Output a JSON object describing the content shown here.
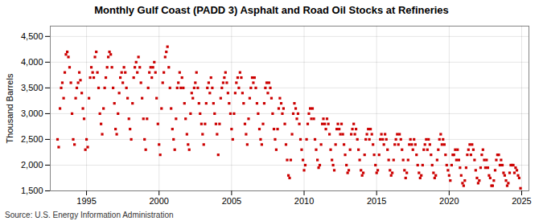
{
  "chart_data": {
    "type": "scatter",
    "title": "Monthly Gulf Coast (PADD 3) Asphalt and Road Oil Stocks at Refineries",
    "y_label": "Thousand Barrels",
    "annotations": [
      "Source: U.S. Energy Information Administration"
    ],
    "color": "#cc0000",
    "marker": "square",
    "grid": true,
    "xlim": [
      1992.5,
      2025.5
    ],
    "ylim": [
      1500,
      4700
    ],
    "xticks": [
      1995,
      2000,
      2005,
      2010,
      2015,
      2020,
      2025
    ],
    "yticks": [
      {
        "value": 1500,
        "label": "1,500"
      },
      {
        "value": 2000,
        "label": "2,000"
      },
      {
        "value": 2500,
        "label": "2,500"
      },
      {
        "value": 3000,
        "label": "3,000"
      },
      {
        "value": 3500,
        "label": "3,500"
      },
      {
        "value": 4000,
        "label": "4,000"
      },
      {
        "value": 4500,
        "label": "4,500"
      }
    ],
    "x": [
      1993.0,
      1993.08,
      1993.17,
      1993.25,
      1993.33,
      1993.42,
      1993.5,
      1993.58,
      1993.67,
      1993.75,
      1993.83,
      1993.92,
      1994.0,
      1994.08,
      1994.17,
      1994.25,
      1994.33,
      1994.42,
      1994.5,
      1994.58,
      1994.67,
      1994.75,
      1994.83,
      1994.92,
      1995.0,
      1995.08,
      1995.17,
      1995.25,
      1995.33,
      1995.42,
      1995.5,
      1995.58,
      1995.67,
      1995.75,
      1995.83,
      1995.92,
      1996.0,
      1996.08,
      1996.17,
      1996.25,
      1996.33,
      1996.42,
      1996.5,
      1996.58,
      1996.67,
      1996.75,
      1996.83,
      1996.92,
      1997.0,
      1997.08,
      1997.17,
      1997.25,
      1997.33,
      1997.42,
      1997.5,
      1997.58,
      1997.67,
      1997.75,
      1997.83,
      1997.92,
      1998.0,
      1998.08,
      1998.17,
      1998.25,
      1998.33,
      1998.42,
      1998.5,
      1998.58,
      1998.67,
      1998.75,
      1998.83,
      1998.92,
      1999.0,
      1999.08,
      1999.17,
      1999.25,
      1999.33,
      1999.42,
      1999.5,
      1999.58,
      1999.67,
      1999.75,
      1999.83,
      1999.92,
      2000.0,
      2000.08,
      2000.17,
      2000.25,
      2000.33,
      2000.42,
      2000.5,
      2000.58,
      2000.67,
      2000.75,
      2000.83,
      2000.92,
      2001.0,
      2001.08,
      2001.17,
      2001.25,
      2001.33,
      2001.42,
      2001.5,
      2001.58,
      2001.67,
      2001.75,
      2001.83,
      2001.92,
      2002.0,
      2002.08,
      2002.17,
      2002.25,
      2002.33,
      2002.42,
      2002.5,
      2002.58,
      2002.67,
      2002.75,
      2002.83,
      2002.92,
      2003.0,
      2003.08,
      2003.17,
      2003.25,
      2003.33,
      2003.42,
      2003.5,
      2003.58,
      2003.67,
      2003.75,
      2003.83,
      2003.92,
      2004.0,
      2004.08,
      2004.17,
      2004.25,
      2004.33,
      2004.42,
      2004.5,
      2004.58,
      2004.67,
      2004.75,
      2004.83,
      2004.92,
      2005.0,
      2005.08,
      2005.17,
      2005.25,
      2005.33,
      2005.42,
      2005.5,
      2005.58,
      2005.67,
      2005.75,
      2005.83,
      2005.92,
      2006.0,
      2006.08,
      2006.17,
      2006.25,
      2006.33,
      2006.42,
      2006.5,
      2006.58,
      2006.67,
      2006.75,
      2006.83,
      2006.92,
      2007.0,
      2007.08,
      2007.17,
      2007.25,
      2007.33,
      2007.42,
      2007.5,
      2007.58,
      2007.67,
      2007.75,
      2007.83,
      2007.92,
      2008.0,
      2008.08,
      2008.17,
      2008.25,
      2008.33,
      2008.42,
      2008.5,
      2008.58,
      2008.67,
      2008.75,
      2008.83,
      2008.92,
      2009.0,
      2009.08,
      2009.17,
      2009.25,
      2009.33,
      2009.42,
      2009.5,
      2009.58,
      2009.67,
      2009.75,
      2009.83,
      2009.92,
      2010.0,
      2010.08,
      2010.17,
      2010.25,
      2010.33,
      2010.42,
      2010.5,
      2010.58,
      2010.67,
      2010.75,
      2010.83,
      2010.92,
      2011.0,
      2011.08,
      2011.17,
      2011.25,
      2011.33,
      2011.42,
      2011.5,
      2011.58,
      2011.67,
      2011.75,
      2011.83,
      2011.92,
      2012.0,
      2012.08,
      2012.17,
      2012.25,
      2012.33,
      2012.42,
      2012.5,
      2012.58,
      2012.67,
      2012.75,
      2012.83,
      2012.92,
      2013.0,
      2013.08,
      2013.17,
      2013.25,
      2013.33,
      2013.42,
      2013.5,
      2013.58,
      2013.67,
      2013.75,
      2013.83,
      2013.92,
      2014.0,
      2014.08,
      2014.17,
      2014.25,
      2014.33,
      2014.42,
      2014.5,
      2014.58,
      2014.67,
      2014.75,
      2014.83,
      2014.92,
      2015.0,
      2015.08,
      2015.17,
      2015.25,
      2015.33,
      2015.42,
      2015.5,
      2015.58,
      2015.67,
      2015.75,
      2015.83,
      2015.92,
      2016.0,
      2016.08,
      2016.17,
      2016.25,
      2016.33,
      2016.42,
      2016.5,
      2016.58,
      2016.67,
      2016.75,
      2016.83,
      2016.92,
      2017.0,
      2017.08,
      2017.17,
      2017.25,
      2017.33,
      2017.42,
      2017.5,
      2017.58,
      2017.67,
      2017.75,
      2017.83,
      2017.92,
      2018.0,
      2018.08,
      2018.17,
      2018.25,
      2018.33,
      2018.42,
      2018.5,
      2018.58,
      2018.67,
      2018.75,
      2018.83,
      2018.92,
      2019.0,
      2019.08,
      2019.17,
      2019.25,
      2019.33,
      2019.42,
      2019.5,
      2019.58,
      2019.67,
      2019.75,
      2019.83,
      2019.92,
      2020.0,
      2020.08,
      2020.17,
      2020.25,
      2020.33,
      2020.42,
      2020.5,
      2020.58,
      2020.67,
      2020.75,
      2020.83,
      2020.92,
      2021.0,
      2021.08,
      2021.17,
      2021.25,
      2021.33,
      2021.42,
      2021.5,
      2021.58,
      2021.67,
      2021.75,
      2021.83,
      2021.92,
      2022.0,
      2022.08,
      2022.17,
      2022.25,
      2022.33,
      2022.42,
      2022.5,
      2022.58,
      2022.67,
      2022.75,
      2022.83,
      2022.92,
      2023.0,
      2023.08,
      2023.17,
      2023.25,
      2023.33,
      2023.42,
      2023.5,
      2023.58,
      2023.67,
      2023.75,
      2023.83,
      2023.92,
      2024.0,
      2024.08,
      2024.17,
      2024.25,
      2024.33,
      2024.42,
      2024.5,
      2024.58,
      2024.67,
      2024.75,
      2024.83,
      2024.92
    ],
    "values": [
      2500,
      2350,
      3100,
      3500,
      3600,
      3300,
      3800,
      4150,
      4200,
      4100,
      3900,
      3600,
      3000,
      2500,
      2400,
      3300,
      3500,
      3600,
      3800,
      3650,
      3400,
      3100,
      2900,
      2300,
      2500,
      2350,
      3300,
      3700,
      3900,
      3800,
      3700,
      4100,
      4200,
      3800,
      3500,
      3000,
      2800,
      2600,
      3100,
      3500,
      3700,
      3900,
      4100,
      4200,
      4150,
      3900,
      3500,
      3200,
      2700,
      2600,
      3000,
      3400,
      3700,
      3800,
      3600,
      3900,
      3800,
      3500,
      3300,
      2900,
      2700,
      2500,
      3200,
      3700,
      3900,
      4000,
      3800,
      4100,
      3900,
      3600,
      3300,
      2900,
      2500,
      2300,
      2900,
      3500,
      3800,
      3900,
      3700,
      3900,
      4000,
      3800,
      3300,
      2800,
      2400,
      2200,
      3100,
      3600,
      3800,
      4100,
      4200,
      4300,
      3900,
      3500,
      3100,
      2700,
      2500,
      2300,
      2900,
      3500,
      3600,
      3800,
      3500,
      3700,
      3500,
      3200,
      2900,
      2600,
      2400,
      2300,
      3000,
      3400,
      3300,
      3500,
      3600,
      3800,
      3500,
      3200,
      3000,
      2800,
      2600,
      2400,
      2800,
      3200,
      3500,
      3600,
      3400,
      3700,
      3500,
      3200,
      3000,
      2800,
      2600,
      2200,
      2800,
      3300,
      3500,
      3600,
      3700,
      3800,
      3600,
      3400,
      3200,
      3000,
      2700,
      2500,
      3000,
      3400,
      3600,
      3700,
      3500,
      3800,
      3700,
      3400,
      3200,
      2800,
      2600,
      2400,
      2900,
      3300,
      3500,
      3700,
      3600,
      3700,
      3500,
      3200,
      3000,
      2700,
      2500,
      2400,
      2800,
      3200,
      3500,
      3600,
      3400,
      3600,
      3500,
      3300,
      3000,
      2700,
      2500,
      2300,
      2700,
      3100,
      3300,
      3200,
      3000,
      3100,
      2800,
      2400,
      2100,
      1800,
      1750,
      2100,
      2600,
      3000,
      3200,
      3100,
      2900,
      3000,
      2800,
      2500,
      2300,
      2100,
      1900,
      2000,
      2500,
      2800,
      3000,
      3100,
      2900,
      3100,
      2900,
      2500,
      2300,
      2100,
      1950,
      2000,
      2400,
      2800,
      2900,
      2800,
      2700,
      2900,
      2800,
      2600,
      2300,
      2100,
      2000,
      1900,
      2400,
      2700,
      2800,
      2700,
      2600,
      2800,
      2600,
      2400,
      2200,
      2000,
      1850,
      1900,
      2300,
      2600,
      2700,
      2800,
      2600,
      2700,
      2500,
      2300,
      2100,
      1900,
      1800,
      1850,
      2200,
      2500,
      2600,
      2700,
      2500,
      2700,
      2600,
      2400,
      2200,
      2000,
      1850,
      1900,
      2200,
      2500,
      2600,
      2500,
      2400,
      2600,
      2500,
      2300,
      2100,
      1900,
      1800,
      1850,
      2100,
      2400,
      2500,
      2600,
      2400,
      2600,
      2500,
      2300,
      2100,
      1900,
      1750,
      1850,
      2100,
      2400,
      2500,
      2400,
      2300,
      2500,
      2400,
      2200,
      2000,
      1850,
      1750,
      1800,
      2000,
      2300,
      2400,
      2500,
      2300,
      2500,
      2400,
      2200,
      2000,
      1850,
      1750,
      1800,
      2100,
      2300,
      2500,
      2600,
      2400,
      2500,
      2400,
      2200,
      2000,
      1900,
      1800,
      1700,
      2000,
      2200,
      2200,
      2300,
      2100,
      2300,
      2100,
      1950,
      1800,
      1650,
      1600,
      1700,
      1950,
      2200,
      2300,
      2400,
      2200,
      2400,
      2300,
      2100,
      1900,
      1750,
      1650,
      1700,
      1950,
      2200,
      2300,
      2100,
      1950,
      2100,
      1950,
      1800,
      1750,
      1600,
      1600,
      1700,
      1900,
      2100,
      2200,
      2200,
      2000,
      2100,
      2000,
      1850,
      1800,
      1700,
      1600,
      1650,
      1850,
      2000,
      2000,
      2000,
      1850,
      1950,
      1900,
      1800,
      1750,
      1550
    ]
  }
}
